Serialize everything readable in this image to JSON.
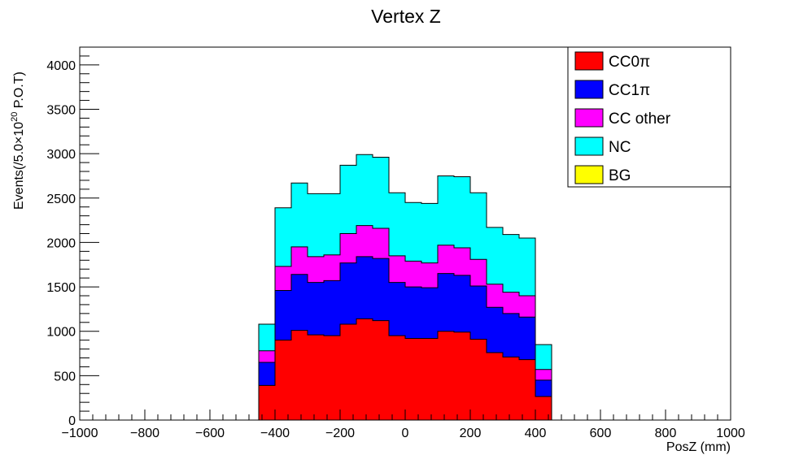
{
  "chart_data": {
    "type": "bar",
    "stacked": true,
    "title": "Vertex Z",
    "xlabel": "PosZ (mm)",
    "ylabel": "Events(/5.0×10^20 P.O.T)",
    "ylabel_parts": {
      "pre": "Events(/5.0×10",
      "sup": "20",
      "post": " P.O.T)"
    },
    "xlim": [
      -1000,
      1000
    ],
    "ylim": [
      0,
      4200
    ],
    "bin_width": 50,
    "x_ticks": [
      -1000,
      -800,
      -600,
      -400,
      -200,
      0,
      200,
      400,
      600,
      800,
      1000
    ],
    "x_tick_labels": [
      "−1000",
      "−800",
      "−600",
      "−400",
      "−200",
      "0",
      "200",
      "400",
      "600",
      "800",
      "1000"
    ],
    "y_ticks": [
      0,
      500,
      1000,
      1500,
      2000,
      2500,
      3000,
      3500,
      4000
    ],
    "y_tick_labels": [
      "0",
      "500",
      "1000",
      "1500",
      "2000",
      "2500",
      "3000",
      "3500",
      "4000"
    ],
    "legend_position": "top-right",
    "grid": false,
    "bin_edges": [
      -450,
      -400,
      -350,
      -300,
      -250,
      -200,
      -150,
      -100,
      -50,
      0,
      50,
      100,
      150,
      200,
      250,
      300,
      350,
      400,
      450
    ],
    "series": [
      {
        "name": "CC0π",
        "color": "#ff0000",
        "values": [
          390,
          900,
          1010,
          960,
          950,
          1080,
          1140,
          1120,
          950,
          920,
          920,
          1000,
          990,
          910,
          760,
          710,
          680,
          265
        ]
      },
      {
        "name": "CC1π",
        "color": "#0000ff",
        "values": [
          260,
          560,
          630,
          590,
          620,
          690,
          700,
          700,
          600,
          580,
          570,
          650,
          640,
          600,
          510,
          490,
          480,
          185
        ]
      },
      {
        "name": "CC other",
        "color": "#ff00ff",
        "values": [
          130,
          270,
          310,
          290,
          290,
          330,
          350,
          340,
          300,
          290,
          280,
          320,
          310,
          300,
          260,
          240,
          240,
          120
        ]
      },
      {
        "name": "NC",
        "color": "#00ffff",
        "values": [
          300,
          660,
          720,
          710,
          690,
          770,
          800,
          800,
          710,
          660,
          670,
          780,
          800,
          750,
          640,
          650,
          650,
          280
        ]
      },
      {
        "name": "BG",
        "color": "#ffff00",
        "values": [
          0,
          0,
          0,
          0,
          0,
          0,
          0,
          0,
          0,
          0,
          0,
          0,
          0,
          0,
          0,
          0,
          0,
          0
        ]
      }
    ]
  }
}
